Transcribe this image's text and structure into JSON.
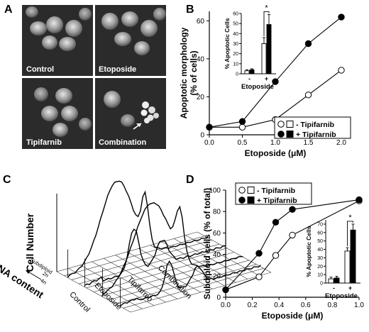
{
  "panels": {
    "a": {
      "letter": "A",
      "tiles": [
        "Control",
        "Etoposide",
        "Tipifarnib",
        "Combination"
      ]
    },
    "c": {
      "letter": "C",
      "ylabel": "Cell Number",
      "depth_label": "DNA content",
      "depth_ticks": [
        "Subdiploid",
        "2n",
        "4n"
      ],
      "samples": [
        "Control",
        "Etoposide",
        "Tipifarnib",
        "Combination"
      ]
    }
  },
  "colors": {
    "axis": "#000000",
    "open_fill": "#ffffff",
    "filled": "#000000",
    "image_bg": "#2b2b2b"
  },
  "chart_data": [
    {
      "panel": "B",
      "type": "line",
      "ylabel_lines": [
        "Apoptotic morphology",
        "(% of cells)"
      ],
      "xlabel": "Etoposide (μM)",
      "x": [
        0,
        0.5,
        1.0,
        1.5,
        2.0
      ],
      "xticks": [
        "0.0",
        "0.5",
        "1.0",
        "1.5",
        "2.0"
      ],
      "xlim": [
        0,
        2.0
      ],
      "ylim": [
        0,
        65
      ],
      "yticks": [
        0,
        20,
        40,
        60
      ],
      "series": [
        {
          "name": "- Tipifarnib",
          "style": "open",
          "values": [
            4,
            4,
            8,
            21,
            34
          ]
        },
        {
          "name": "+ Tipifarnib",
          "style": "filled",
          "values": [
            4,
            7,
            28,
            48,
            62
          ]
        }
      ],
      "legend": "bottom-right",
      "inset": {
        "type": "bar",
        "ylabel": "% Apoptotic Cells",
        "ylim": [
          0,
          60
        ],
        "yticks": [
          0,
          10,
          20,
          30,
          40,
          50,
          60
        ],
        "groups": [
          "-",
          "+"
        ],
        "xlabel": "Etoposide",
        "series": [
          {
            "name": "- Tipifarnib",
            "style": "open",
            "values": [
              3,
              30
            ],
            "errors": [
              1,
              6
            ]
          },
          {
            "name": "+ Tipifarnib",
            "style": "filled",
            "values": [
              4,
              49
            ],
            "errors": [
              1,
              10
            ]
          }
        ],
        "significance": "*"
      }
    },
    {
      "panel": "D",
      "type": "line",
      "ylabel": "Subdiploid cells (% of total)",
      "xlabel": "Etoposide (μM)",
      "ylim": [
        0,
        100
      ],
      "yticks": [
        0,
        20,
        40,
        60,
        80,
        100
      ],
      "xlim": [
        0,
        1.0
      ],
      "xticks": [
        "0.0",
        "0.2",
        "0.4",
        "0.6",
        "0.8",
        "1.0"
      ],
      "series": [
        {
          "name": "- Tipifarnib",
          "style": "open",
          "x": [
            0,
            0.25,
            0.375,
            0.5,
            1.0
          ],
          "values": [
            7,
            19,
            39,
            58,
            90
          ]
        },
        {
          "name": "+ Tipifarnib",
          "style": "filled",
          "x": [
            0,
            0.25,
            0.375,
            0.5,
            1.0
          ],
          "values": [
            7,
            41,
            70,
            82,
            91
          ]
        }
      ],
      "legend": "top-left",
      "inset": {
        "type": "bar",
        "ylabel": "% Apoptotic Cells",
        "ylim": [
          0,
          75
        ],
        "yticks": [
          0,
          10,
          20,
          30,
          40,
          50,
          60,
          70
        ],
        "groups": [
          "-",
          "+"
        ],
        "xlabel": "Etoposide",
        "series": [
          {
            "name": "- Tipifarnib",
            "style": "open",
            "values": [
              5,
              38
            ],
            "errors": [
              2,
              4
            ]
          },
          {
            "name": "+ Tipifarnib",
            "style": "filled",
            "values": [
              6,
              63
            ],
            "errors": [
              2,
              7
            ]
          }
        ],
        "significance": "*"
      }
    }
  ]
}
